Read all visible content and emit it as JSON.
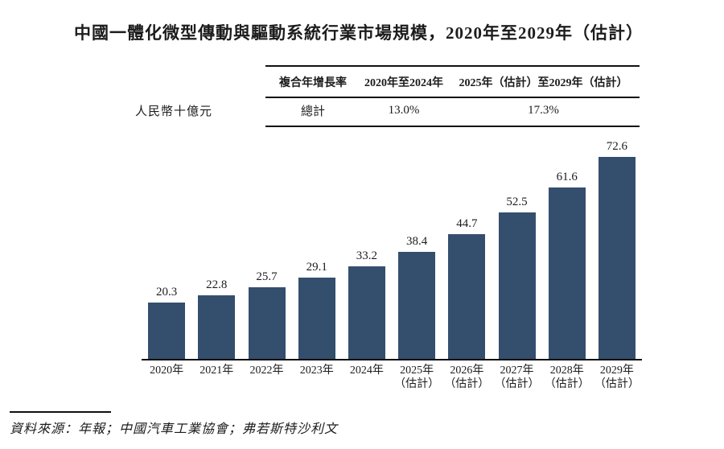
{
  "title": "中國一體化微型傳動與驅動系統行業市場規模，2020年至2029年（估計）",
  "unit_label": "人民幣十億元",
  "cagr_table": {
    "headers": [
      "複合年增長率",
      "2020年至2024年",
      "2025年（估計）至2029年（估計）"
    ],
    "row": {
      "label": "總計",
      "values": [
        "13.0%",
        "17.3%"
      ]
    }
  },
  "source": "資料來源：年報；中國汽車工業協會；弗若斯特沙利文",
  "colors": {
    "bar": "#344e6e",
    "text": "#1c1c1c",
    "line": "#111111"
  },
  "chart_data": {
    "type": "bar",
    "title": "中國一體化微型傳動與驅動系統行業市場規模，2020年至2029年（估計）",
    "xlabel": "",
    "ylabel": "人民幣十億元",
    "categories": [
      "2020年",
      "2021年",
      "2022年",
      "2023年",
      "2024年",
      "2025年（估計）",
      "2026年（估計）",
      "2027年（估計）",
      "2028年（估計）",
      "2029年（估計）"
    ],
    "category_notes": [
      "",
      "",
      "",
      "",
      "",
      "（估計）",
      "（估計）",
      "（估計）",
      "（估計）",
      "（估計）"
    ],
    "values": [
      20.3,
      22.8,
      25.7,
      29.1,
      33.2,
      38.4,
      44.7,
      52.5,
      61.6,
      72.6
    ],
    "ylim": [
      0,
      75
    ],
    "bar_color": "#344e6e",
    "grid": false,
    "legend": "none",
    "data_labels": true
  }
}
